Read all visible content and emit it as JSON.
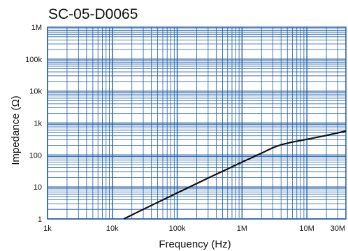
{
  "chart_data": {
    "type": "line",
    "title": "SC-05-D0065",
    "xlabel": "Frequency (Hz)",
    "ylabel": "Impedance (Ω)",
    "x_scale": "log",
    "y_scale": "log",
    "xlim": [
      1000,
      40000000
    ],
    "ylim": [
      1,
      1000000
    ],
    "x_ticks": [
      {
        "value": 1000,
        "label": "1k"
      },
      {
        "value": 10000,
        "label": "10k"
      },
      {
        "value": 100000,
        "label": "100k"
      },
      {
        "value": 1000000,
        "label": "1M"
      },
      {
        "value": 10000000,
        "label": "10M"
      },
      {
        "value": 30000000,
        "label": "30M"
      }
    ],
    "y_ticks": [
      {
        "value": 1,
        "label": "1"
      },
      {
        "value": 10,
        "label": "10"
      },
      {
        "value": 100,
        "label": "100"
      },
      {
        "value": 1000,
        "label": "1k"
      },
      {
        "value": 10000,
        "label": "10k"
      },
      {
        "value": 100000,
        "label": "100k"
      },
      {
        "value": 1000000,
        "label": "1M"
      }
    ],
    "grid": true,
    "colors": {
      "grid": "#1f5fa8",
      "frame": "#1f5fa8",
      "curve": "#111111"
    },
    "series": [
      {
        "x": [
          15000,
          30000,
          100000,
          300000,
          1000000,
          2000000,
          3000000,
          4000000,
          6000000,
          10000000,
          20000000,
          40000000
        ],
        "y": [
          1,
          2,
          6.5,
          19,
          60,
          115,
          170,
          210,
          255,
          310,
          410,
          560
        ]
      }
    ]
  }
}
